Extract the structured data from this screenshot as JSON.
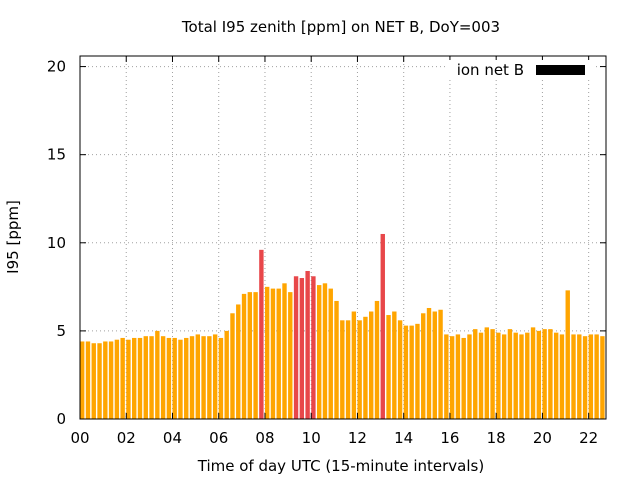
{
  "chart_data": {
    "type": "bar",
    "title": "Total I95 zenith [ppm] on NET B, DoY=003",
    "xlabel": "Time of day UTC (15-minute intervals)",
    "ylabel": "I95 [ppm]",
    "xlim": [
      0,
      22.75
    ],
    "ylim": [
      0,
      20.6
    ],
    "x_ticks": [
      {
        "value": 0,
        "label": "00"
      },
      {
        "value": 2,
        "label": "02"
      },
      {
        "value": 4,
        "label": "04"
      },
      {
        "value": 6,
        "label": "06"
      },
      {
        "value": 8,
        "label": "08"
      },
      {
        "value": 10,
        "label": "10"
      },
      {
        "value": 12,
        "label": "12"
      },
      {
        "value": 14,
        "label": "14"
      },
      {
        "value": 16,
        "label": "16"
      },
      {
        "value": 18,
        "label": "18"
      },
      {
        "value": 20,
        "label": "20"
      },
      {
        "value": 22,
        "label": "22"
      }
    ],
    "y_ticks": [
      {
        "value": 0,
        "label": "0"
      },
      {
        "value": 5,
        "label": "5"
      },
      {
        "value": 10,
        "label": "10"
      },
      {
        "value": 15,
        "label": "15"
      },
      {
        "value": 20,
        "label": "20"
      }
    ],
    "grid": true,
    "legend": {
      "position": "top-right",
      "label": "ion net B",
      "color": "#000000"
    },
    "colors": {
      "normal": "#ffa500",
      "high": "#e8474a"
    },
    "bar_width_hours": 0.19,
    "series": [
      {
        "x": [
          0.0,
          0.25,
          0.5,
          0.75,
          1.0,
          1.25,
          1.5,
          1.75,
          2.0,
          2.25,
          2.5,
          2.75,
          3.0,
          3.25,
          3.5,
          3.75,
          4.0,
          4.25,
          4.5,
          4.75,
          5.0,
          5.25,
          5.5,
          5.75,
          6.0,
          6.25,
          6.5,
          6.75,
          7.0,
          7.25,
          7.5,
          7.75,
          8.0,
          8.25,
          8.5,
          8.75,
          9.0,
          9.25,
          9.5,
          9.75,
          10.0,
          10.25,
          10.5,
          10.75,
          11.0,
          11.25,
          11.5,
          11.75,
          12.0,
          12.25,
          12.5,
          12.75,
          13.0,
          13.25,
          13.5,
          13.75,
          14.0,
          14.25,
          14.5,
          14.75,
          15.0,
          15.25,
          15.5,
          15.75,
          16.0,
          16.25,
          16.5,
          16.75,
          17.0,
          17.25,
          17.5,
          17.75,
          18.0,
          18.25,
          18.5,
          18.75,
          19.0,
          19.25,
          19.5,
          19.75,
          20.0,
          20.25,
          20.5,
          20.75,
          21.0,
          21.25,
          21.5,
          21.75,
          22.0,
          22.25,
          22.5
        ],
        "values": [
          4.4,
          4.4,
          4.3,
          4.3,
          4.4,
          4.4,
          4.5,
          4.6,
          4.5,
          4.6,
          4.6,
          4.7,
          4.7,
          5.0,
          4.7,
          4.6,
          4.6,
          4.5,
          4.6,
          4.7,
          4.8,
          4.7,
          4.7,
          4.8,
          4.6,
          5.0,
          6.0,
          6.5,
          7.1,
          7.2,
          7.2,
          9.6,
          7.5,
          7.4,
          7.4,
          7.7,
          7.2,
          8.1,
          8.0,
          8.4,
          8.1,
          7.6,
          7.7,
          7.4,
          6.7,
          5.6,
          5.6,
          6.1,
          5.6,
          5.8,
          6.1,
          6.7,
          10.5,
          5.9,
          6.1,
          5.6,
          5.3,
          5.3,
          5.4,
          6.0,
          6.3,
          6.1,
          6.2,
          4.8,
          4.7,
          4.8,
          4.6,
          4.8,
          5.1,
          4.9,
          5.2,
          5.1,
          4.9,
          4.8,
          5.1,
          4.9,
          4.8,
          4.9,
          5.2,
          5.0,
          5.1,
          5.1,
          4.9,
          4.8,
          7.3,
          4.8,
          4.8,
          4.7,
          4.8,
          4.8,
          4.7
        ],
        "highlight_indices": [
          31,
          37,
          38,
          39,
          40,
          52
        ]
      }
    ]
  }
}
